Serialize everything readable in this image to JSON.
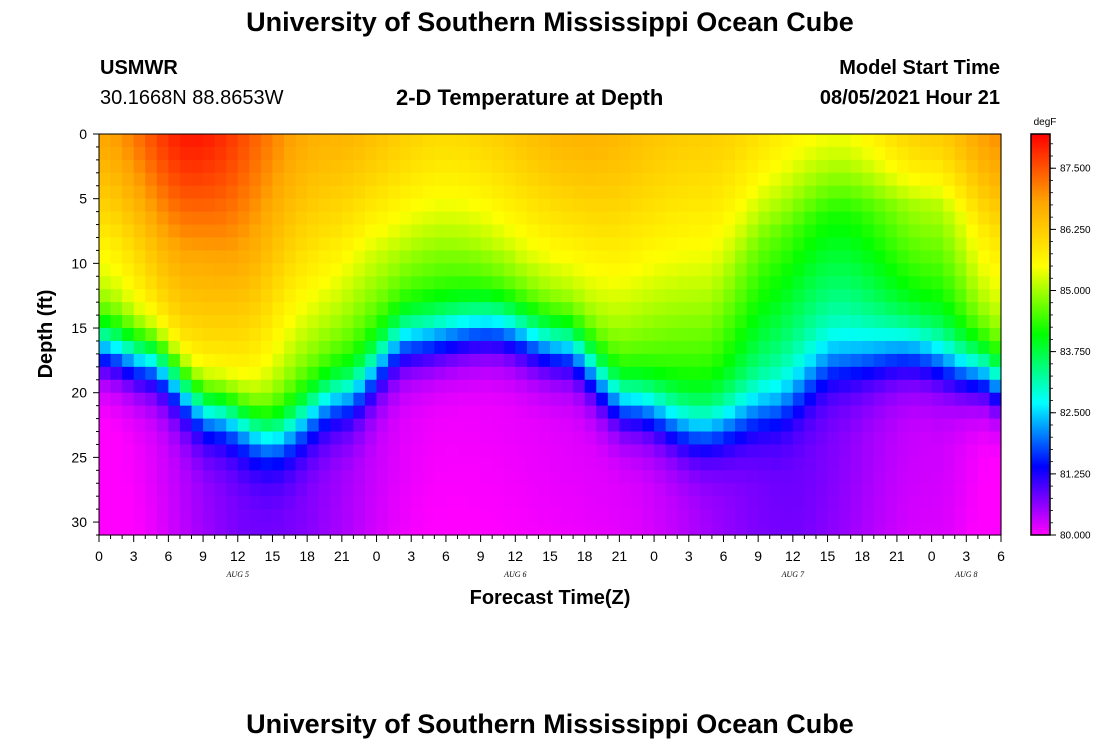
{
  "header": {
    "title": "University of Southern Mississippi Ocean Cube",
    "station": "USMWR",
    "coords": "30.1668N  88.8653W",
    "subtitle": "2-D Temperature at Depth",
    "model_start_label": "Model Start Time",
    "model_start_value": "08/05/2021 Hour 21"
  },
  "footer": {
    "title": "University of Southern Mississippi Ocean Cube"
  },
  "colors": {
    "colormap": [
      "#ff00ff",
      "#0000ff",
      "#00ffff",
      "#00ff00",
      "#ffff00",
      "#ffa500",
      "#ff0000"
    ]
  },
  "chart_data": {
    "type": "heatmap",
    "title": "2-D Temperature at Depth",
    "xlabel": "Forecast Time(Z)",
    "ylabel": "Depth (ft)",
    "x_ticks": [
      "0",
      "3",
      "6",
      "9",
      "12",
      "15",
      "18",
      "21",
      "0",
      "3",
      "6",
      "9",
      "12",
      "15",
      "18",
      "21",
      "0",
      "3",
      "6",
      "9",
      "12",
      "15",
      "18",
      "21",
      "0",
      "3",
      "6"
    ],
    "x_range_hours": [
      0,
      78
    ],
    "day_labels": [
      {
        "label": "AUG 5",
        "hour": 12
      },
      {
        "label": "AUG 6",
        "hour": 36
      },
      {
        "label": "AUG 7",
        "hour": 60
      },
      {
        "label": "AUG 8",
        "hour": 75
      }
    ],
    "y_ticks": [
      "0",
      "5",
      "10",
      "15",
      "20",
      "25",
      "30"
    ],
    "y_range_ft": [
      0,
      31
    ],
    "colorbar": {
      "unit": "degF",
      "ticks": [
        "80.000",
        "81.250",
        "82.500",
        "83.750",
        "85.000",
        "86.250",
        "87.500"
      ],
      "range": [
        80.0,
        88.2
      ]
    },
    "surface_temp_degF": [
      {
        "hour": 0,
        "value": 86.8
      },
      {
        "hour": 8,
        "value": 88.0
      },
      {
        "hour": 20,
        "value": 86.6
      },
      {
        "hour": 30,
        "value": 86.0
      },
      {
        "hour": 42,
        "value": 86.6
      },
      {
        "hour": 52,
        "value": 86.2
      },
      {
        "hour": 64,
        "value": 85.4
      },
      {
        "hour": 72,
        "value": 86.2
      },
      {
        "hour": 78,
        "value": 87.0
      }
    ],
    "bottom_temp_degF": [
      {
        "hour": 0,
        "value": 80.0
      },
      {
        "hour": 14,
        "value": 80.8
      },
      {
        "hour": 30,
        "value": 80.1
      },
      {
        "hour": 44,
        "value": 80.2
      },
      {
        "hour": 60,
        "value": 80.8
      },
      {
        "hour": 72,
        "value": 80.3
      },
      {
        "hour": 78,
        "value": 80.0
      }
    ],
    "thermocline_mid_depth_ft": [
      {
        "hour": 0,
        "value": 16.5
      },
      {
        "hour": 4,
        "value": 17.5
      },
      {
        "hour": 10,
        "value": 21.5
      },
      {
        "hour": 15,
        "value": 23.5
      },
      {
        "hour": 21,
        "value": 20.5
      },
      {
        "hour": 27,
        "value": 16.0
      },
      {
        "hour": 34,
        "value": 15.0
      },
      {
        "hour": 40,
        "value": 16.5
      },
      {
        "hour": 46,
        "value": 21.0
      },
      {
        "hour": 52,
        "value": 23.0
      },
      {
        "hour": 58,
        "value": 21.5
      },
      {
        "hour": 64,
        "value": 18.0
      },
      {
        "hour": 70,
        "value": 17.0
      },
      {
        "hour": 76,
        "value": 18.5
      },
      {
        "hour": 78,
        "value": 19.5
      }
    ],
    "warm_layer_depth_ft": [
      {
        "hour": 0,
        "value": 8.5
      },
      {
        "hour": 8,
        "value": 9.0
      },
      {
        "hour": 14,
        "value": 13.0
      },
      {
        "hour": 18,
        "value": 12.0
      },
      {
        "hour": 24,
        "value": 9.0
      },
      {
        "hour": 32,
        "value": 9.0
      },
      {
        "hour": 40,
        "value": 10.0
      },
      {
        "hour": 46,
        "value": 12.0
      },
      {
        "hour": 52,
        "value": 12.5
      },
      {
        "hour": 58,
        "value": 8.0
      },
      {
        "hour": 64,
        "value": 6.0
      },
      {
        "hour": 72,
        "value": 5.5
      },
      {
        "hour": 78,
        "value": 8.0
      }
    ]
  }
}
